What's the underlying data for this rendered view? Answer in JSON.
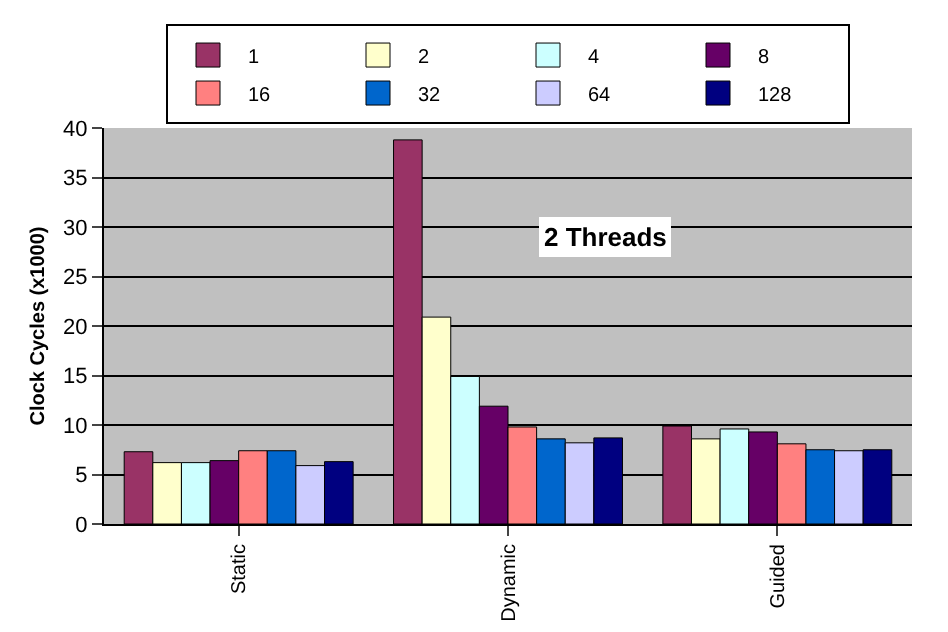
{
  "chart_data": {
    "type": "bar",
    "ylabel": "Clock Cycles (x1000)",
    "categories": [
      "Static",
      "Dynamic",
      "Guided"
    ],
    "series": [
      {
        "name": "1",
        "color": "#993366",
        "values": [
          7.3,
          38.8,
          9.9
        ]
      },
      {
        "name": "2",
        "color": "#ffffcc",
        "values": [
          6.2,
          20.9,
          8.6
        ]
      },
      {
        "name": "4",
        "color": "#ccffff",
        "values": [
          6.2,
          14.9,
          9.6
        ]
      },
      {
        "name": "8",
        "color": "#660066",
        "values": [
          6.4,
          11.9,
          9.3
        ]
      },
      {
        "name": "16",
        "color": "#ff8080",
        "values": [
          7.4,
          9.8,
          8.1
        ]
      },
      {
        "name": "32",
        "color": "#0066cc",
        "values": [
          7.4,
          8.6,
          7.5
        ]
      },
      {
        "name": "64",
        "color": "#ccccff",
        "values": [
          5.9,
          8.2,
          7.4
        ]
      },
      {
        "name": "128",
        "color": "#000080",
        "values": [
          6.3,
          8.7,
          7.5
        ]
      }
    ],
    "ylim": [
      0,
      40
    ],
    "yticks": [
      0,
      5,
      10,
      15,
      20,
      25,
      30,
      35,
      40
    ],
    "grid": "y",
    "legend": "top",
    "annotations": [
      "2 Threads"
    ]
  }
}
